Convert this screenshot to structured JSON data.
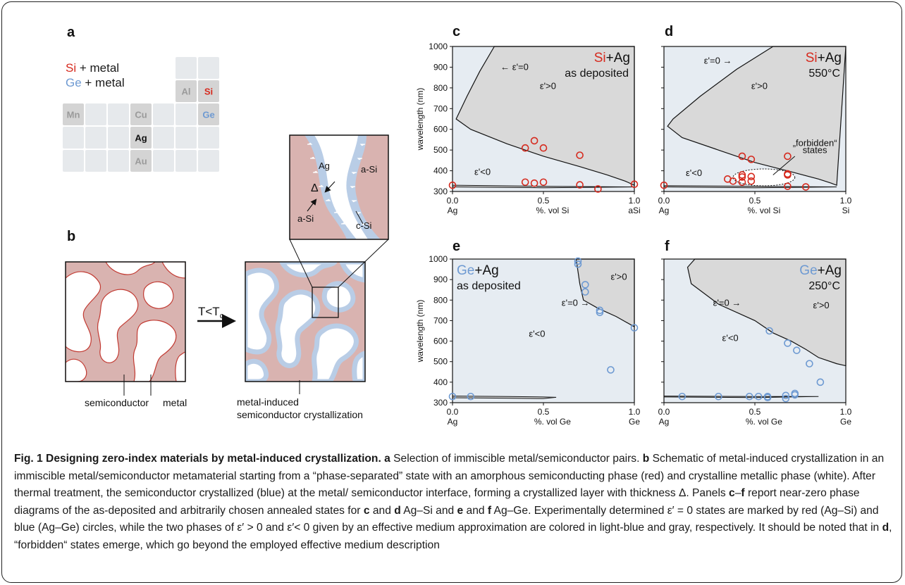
{
  "figure": {
    "panel_labels": {
      "a": "a",
      "b": "b",
      "c": "c",
      "d": "d",
      "e": "e",
      "f": "f"
    },
    "panel_a": {
      "legend_si": "Si + metal",
      "legend_ge": "Ge + metal",
      "cells": [
        {
          "id": "Al",
          "text": "Al",
          "style": "gray"
        },
        {
          "id": "Si",
          "text": "Si",
          "style": "red"
        },
        {
          "id": "Mn",
          "text": "Mn",
          "style": "gray"
        },
        {
          "id": "Cu",
          "text": "Cu",
          "style": "gray"
        },
        {
          "id": "Ge",
          "text": "Ge",
          "style": "blue"
        },
        {
          "id": "Ag",
          "text": "Ag",
          "style": "black"
        },
        {
          "id": "Au",
          "text": "Au",
          "style": "gray"
        }
      ]
    },
    "panel_b": {
      "arrow_label": "T<T",
      "arrow_label_sub": "c",
      "label_semiconductor": "semiconductor",
      "label_metal": "metal",
      "label_mic_line1": "metal-induced",
      "label_mic_line2": "semiconductor crystallization",
      "inset_ag": "Ag",
      "inset_asi_right": "a-Si",
      "inset_asi_left": "a-Si",
      "inset_csi": "c-Si",
      "inset_delta": "Δ"
    },
    "colors": {
      "si_red": "#d62a1e",
      "ge_blue": "#6e9ad2",
      "light_blue_bg": "#e6ecf2",
      "gray_region": "#d9d9d9",
      "semiconductor_fill": "#d9b3b0",
      "crystal_blue": "#b9cde6"
    }
  },
  "chart_data": [
    {
      "type": "scatter",
      "panel": "c",
      "title_elem": "Si",
      "title_rest": "+Ag",
      "subtitle": "as deposited",
      "ylabel": "wavelength (nm)",
      "xlabel": "%. vol Si",
      "xlim": [
        0,
        1
      ],
      "ylim": [
        300,
        1000
      ],
      "xticks": [
        "0.0",
        "0.5",
        "1.0"
      ],
      "xsub": [
        "Ag",
        "",
        "aSi"
      ],
      "yticks": [
        300,
        400,
        500,
        600,
        700,
        800,
        900,
        1000
      ],
      "eps_zero": "ε'=0",
      "eps_pos": "ε'>0",
      "eps_neg": "ε'<0",
      "marker_color": "#d62a1e",
      "points": [
        [
          0.0,
          330
        ],
        [
          0.4,
          510
        ],
        [
          0.45,
          545
        ],
        [
          0.5,
          510
        ],
        [
          0.7,
          475
        ],
        [
          0.4,
          345
        ],
        [
          0.45,
          340
        ],
        [
          0.5,
          345
        ],
        [
          0.7,
          332
        ],
        [
          0.8,
          312
        ],
        [
          1.0,
          335
        ]
      ]
    },
    {
      "type": "scatter",
      "panel": "d",
      "title_elem": "Si",
      "title_rest": "+Ag",
      "subtitle": "550°C",
      "ylabel": "",
      "xlabel": "%. vol Si",
      "xlim": [
        0,
        1
      ],
      "ylim": [
        300,
        1000
      ],
      "xticks": [
        "0.0",
        "0.5",
        "1.0"
      ],
      "xsub": [
        "Ag",
        "",
        "Si"
      ],
      "eps_zero": "ε'=0",
      "eps_pos": "ε'>0",
      "eps_neg": "ε'<0",
      "annotation_line1": "„forbidden“",
      "annotation_line2": "states",
      "marker_color": "#d62a1e",
      "points": [
        [
          0.0,
          330
        ],
        [
          0.43,
          470
        ],
        [
          0.48,
          455
        ],
        [
          0.68,
          470
        ],
        [
          0.43,
          380
        ],
        [
          0.43,
          370
        ],
        [
          0.48,
          372
        ],
        [
          0.68,
          385
        ],
        [
          0.35,
          360
        ],
        [
          0.38,
          350
        ],
        [
          0.43,
          345
        ],
        [
          0.48,
          350
        ],
        [
          0.68,
          380
        ],
        [
          0.68,
          325
        ],
        [
          0.78,
          322
        ]
      ]
    },
    {
      "type": "scatter",
      "panel": "e",
      "title_elem": "Ge",
      "title_rest": "+Ag",
      "subtitle": "as deposited",
      "ylabel": "wavelength (nm)",
      "xlabel": "%. vol Ge",
      "xlim": [
        0,
        1
      ],
      "ylim": [
        300,
        1000
      ],
      "xticks": [
        "0.0",
        "0.5",
        "1.0"
      ],
      "xsub": [
        "Ag",
        "",
        "Ge"
      ],
      "yticks": [
        300,
        400,
        500,
        600,
        700,
        800,
        900,
        1000
      ],
      "eps_zero": "ε'=0",
      "eps_pos": "ε'>0",
      "eps_neg": "ε'<0",
      "marker_color": "#6e9ad2",
      "points": [
        [
          0.0,
          330
        ],
        [
          0.1,
          330
        ],
        [
          0.69,
          990
        ],
        [
          0.69,
          975
        ],
        [
          0.73,
          875
        ],
        [
          0.73,
          840
        ],
        [
          0.81,
          750
        ],
        [
          0.81,
          740
        ],
        [
          0.87,
          460
        ],
        [
          1.0,
          665
        ]
      ]
    },
    {
      "type": "scatter",
      "panel": "f",
      "title_elem": "Ge",
      "title_rest": "+Ag",
      "subtitle": "250°C",
      "ylabel": "",
      "xlabel": "%. vol Ge",
      "xlim": [
        0,
        1
      ],
      "ylim": [
        300,
        1000
      ],
      "xticks": [
        "0.0",
        "0.5",
        "1.0"
      ],
      "xsub": [
        "Ag",
        "",
        "Ge"
      ],
      "eps_zero": "ε'=0",
      "eps_pos": "ε'>0",
      "eps_neg": "ε'<0",
      "marker_color": "#6e9ad2",
      "points": [
        [
          0.1,
          330
        ],
        [
          0.3,
          330
        ],
        [
          0.47,
          330
        ],
        [
          0.52,
          330
        ],
        [
          0.57,
          330
        ],
        [
          0.57,
          325
        ],
        [
          0.67,
          335
        ],
        [
          0.67,
          320
        ],
        [
          0.72,
          338
        ],
        [
          0.72,
          345
        ],
        [
          0.58,
          650
        ],
        [
          0.68,
          590
        ],
        [
          0.73,
          555
        ],
        [
          0.8,
          490
        ],
        [
          0.86,
          400
        ]
      ]
    }
  ],
  "caption": {
    "title": "Fig. 1 Designing zero-index materials by metal-induced crystallization.",
    "segments": [
      {
        "t": " "
      },
      {
        "t": "a",
        "b": true
      },
      {
        "t": " Selection of immiscible metal/semiconductor pairs. "
      },
      {
        "t": "b",
        "b": true
      },
      {
        "t": " Schematic of metal-induced crystallization in an immiscible metal/semiconductor metamaterial starting from a “phase-separated” state with an amorphous semiconducting phase (red) and crystalline metallic phase (white). After thermal treatment, the semiconductor crystallized (blue) at the metal/ semiconductor interface, forming a crystallized layer with thickness Δ. Panels "
      },
      {
        "t": "c",
        "b": true
      },
      {
        "t": "–"
      },
      {
        "t": "f",
        "b": true
      },
      {
        "t": " report near-zero phase diagrams of the as-deposited and arbitrarily chosen annealed states for "
      },
      {
        "t": "c",
        "b": true
      },
      {
        "t": " and "
      },
      {
        "t": "d",
        "b": true
      },
      {
        "t": " Ag–Si and "
      },
      {
        "t": "e",
        "b": true
      },
      {
        "t": " and "
      },
      {
        "t": "f",
        "b": true
      },
      {
        "t": " Ag–Ge. Experimentally determined ε′ = 0 states are marked by red (Ag–Si) and blue (Ag–Ge) circles, while the two phases of ε′ > 0 and ε′< 0 given by an effective medium approximation are colored in light-blue and gray, respectively. It should be noted that in "
      },
      {
        "t": "d",
        "b": true
      },
      {
        "t": ", “forbidden“ states emerge, which go beyond the employed effective medium description"
      }
    ]
  }
}
